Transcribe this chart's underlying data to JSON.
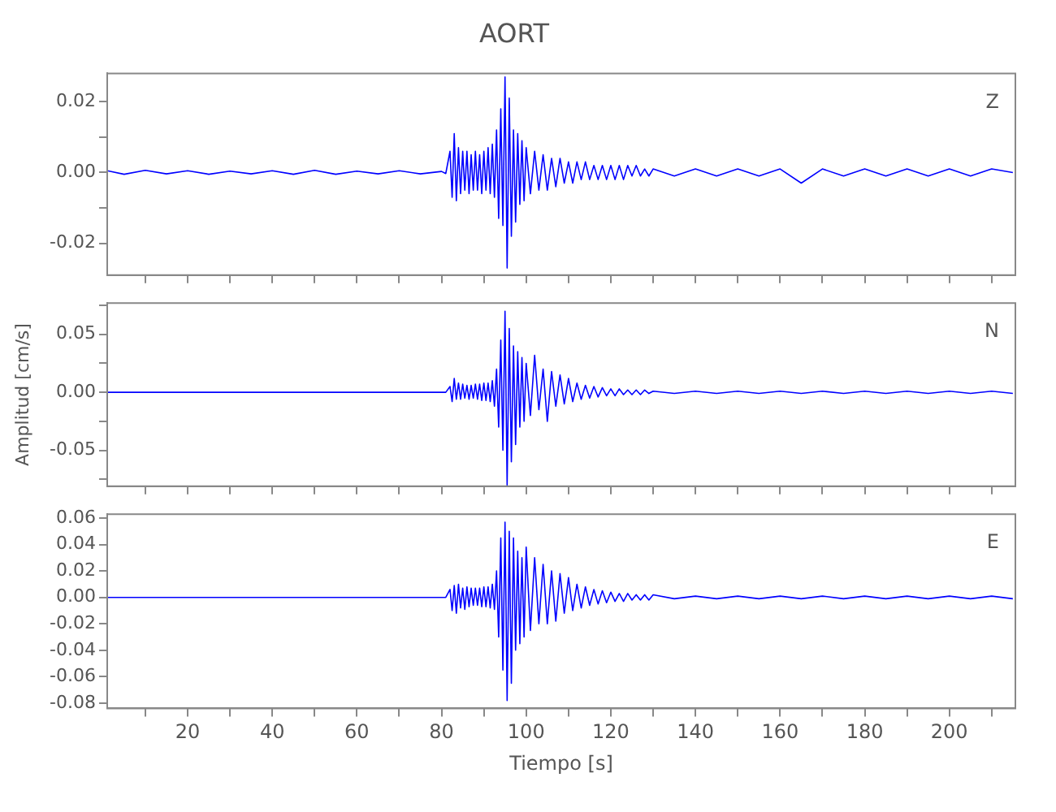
{
  "chart_data": [
    {
      "type": "line",
      "title": "AORT",
      "annotations": [
        "Z"
      ],
      "tick_labels": "y",
      "xlim": [
        1,
        215.6
      ],
      "xticks": [
        {
          "value": 10,
          "label": null
        },
        {
          "value": 20,
          "label": null
        },
        {
          "value": 30,
          "label": null
        },
        {
          "value": 40,
          "label": null
        },
        {
          "value": 50,
          "label": null
        },
        {
          "value": 60,
          "label": null
        },
        {
          "value": 70,
          "label": null
        },
        {
          "value": 80,
          "label": null
        },
        {
          "value": 90,
          "label": null
        },
        {
          "value": 100,
          "label": null
        },
        {
          "value": 110,
          "label": null
        },
        {
          "value": 120,
          "label": null
        },
        {
          "value": 130,
          "label": null
        },
        {
          "value": 140,
          "label": null
        },
        {
          "value": 150,
          "label": null
        },
        {
          "value": 160,
          "label": null
        },
        {
          "value": 170,
          "label": null
        },
        {
          "value": 180,
          "label": null
        },
        {
          "value": 190,
          "label": null
        },
        {
          "value": 200,
          "label": null
        },
        {
          "value": 210,
          "label": null
        }
      ],
      "ylim": [
        -0.029,
        0.028
      ],
      "yticks": [
        -0.02,
        {
          "value": -0.01,
          "label": null
        },
        {
          "value": 0,
          "label": "0.00"
        },
        {
          "value": 0.01,
          "label": null
        },
        0.02
      ],
      "series": [
        {
          "color": "#0000ff",
          "x": [
            1,
            5,
            10,
            15,
            20,
            25,
            30,
            35,
            40,
            45,
            50,
            55,
            60,
            65,
            70,
            75,
            80,
            81,
            82,
            82.5,
            83,
            83.5,
            84,
            84.5,
            85,
            85.5,
            86,
            86.5,
            87,
            87.5,
            88,
            88.5,
            89,
            89.5,
            90,
            90.5,
            91,
            91.5,
            92,
            92.5,
            93,
            93.5,
            94,
            94.5,
            95,
            95.5,
            96,
            96.5,
            97,
            97.5,
            98,
            98.5,
            99,
            99.5,
            100,
            101,
            102,
            103,
            104,
            105,
            106,
            107,
            108,
            109,
            110,
            111,
            112,
            113,
            114,
            115,
            116,
            117,
            118,
            119,
            120,
            121,
            122,
            123,
            124,
            125,
            126,
            127,
            128,
            129,
            130,
            135,
            140,
            145,
            150,
            155,
            160,
            165,
            170,
            175,
            180,
            185,
            190,
            195,
            200,
            205,
            210,
            215
          ],
          "values": [
            0.0005,
            -0.0005,
            0.0006,
            -0.0004,
            0.0005,
            -0.0005,
            0.0004,
            -0.0004,
            0.0005,
            -0.0005,
            0.0006,
            -0.0005,
            0.0004,
            -0.0004,
            0.0005,
            -0.0004,
            0.0003,
            -0.0003,
            0.006,
            -0.007,
            0.011,
            -0.008,
            0.007,
            -0.006,
            0.006,
            -0.005,
            0.006,
            -0.006,
            0.005,
            -0.005,
            0.006,
            -0.005,
            0.005,
            -0.006,
            0.006,
            -0.005,
            0.007,
            -0.006,
            0.008,
            -0.007,
            0.012,
            -0.013,
            0.018,
            -0.015,
            0.027,
            -0.027,
            0.021,
            -0.018,
            0.012,
            -0.014,
            0.011,
            -0.009,
            0.009,
            -0.008,
            0.007,
            -0.006,
            0.006,
            -0.005,
            0.005,
            -0.005,
            0.004,
            -0.004,
            0.004,
            -0.003,
            0.003,
            -0.003,
            0.003,
            -0.002,
            0.003,
            -0.002,
            0.002,
            -0.002,
            0.002,
            -0.002,
            0.002,
            -0.002,
            0.002,
            -0.002,
            0.002,
            -0.001,
            0.002,
            -0.001,
            0.001,
            -0.001,
            0.001,
            -0.001,
            0.001,
            -0.001,
            0.001,
            -0.001,
            0.001,
            -0.003,
            0.001,
            -0.001,
            0.001,
            -0.001,
            0.001,
            -0.001,
            0.001,
            -0.001,
            0.001,
            0
          ]
        }
      ]
    },
    {
      "type": "line",
      "ylabel": "Amplitud [cm/s]",
      "annotations": [
        "N"
      ],
      "tick_labels": "y",
      "xlim": [
        1,
        215.6
      ],
      "xticks": [
        {
          "value": 10,
          "label": null
        },
        {
          "value": 20,
          "label": null
        },
        {
          "value": 30,
          "label": null
        },
        {
          "value": 40,
          "label": null
        },
        {
          "value": 50,
          "label": null
        },
        {
          "value": 60,
          "label": null
        },
        {
          "value": 70,
          "label": null
        },
        {
          "value": 80,
          "label": null
        },
        {
          "value": 90,
          "label": null
        },
        {
          "value": 100,
          "label": null
        },
        {
          "value": 110,
          "label": null
        },
        {
          "value": 120,
          "label": null
        },
        {
          "value": 130,
          "label": null
        },
        {
          "value": 140,
          "label": null
        },
        {
          "value": 150,
          "label": null
        },
        {
          "value": 160,
          "label": null
        },
        {
          "value": 170,
          "label": null
        },
        {
          "value": 180,
          "label": null
        },
        {
          "value": 190,
          "label": null
        },
        {
          "value": 200,
          "label": null
        },
        {
          "value": 210,
          "label": null
        }
      ],
      "ylim": [
        -0.081,
        0.077
      ],
      "yticks": [
        {
          "value": -0.075,
          "label": null
        },
        -0.05,
        {
          "value": -0.025,
          "label": null
        },
        {
          "value": 0,
          "label": "0.00"
        },
        {
          "value": 0.025,
          "label": null
        },
        0.05,
        {
          "value": 0.075,
          "label": null
        }
      ],
      "series": [
        {
          "color": "#0000ff",
          "x": [
            1,
            5,
            10,
            15,
            20,
            25,
            30,
            35,
            40,
            45,
            50,
            55,
            60,
            65,
            70,
            75,
            80,
            81,
            82,
            82.5,
            83,
            83.5,
            84,
            84.5,
            85,
            85.5,
            86,
            86.5,
            87,
            87.5,
            88,
            88.5,
            89,
            89.5,
            90,
            90.5,
            91,
            91.5,
            92,
            92.5,
            93,
            93.5,
            94,
            94.5,
            95,
            95.5,
            96,
            96.5,
            97,
            97.5,
            98,
            98.5,
            99,
            99.5,
            100,
            101,
            102,
            103,
            104,
            105,
            106,
            107,
            108,
            109,
            110,
            111,
            112,
            113,
            114,
            115,
            116,
            117,
            118,
            119,
            120,
            121,
            122,
            123,
            124,
            125,
            126,
            127,
            128,
            129,
            130,
            135,
            140,
            145,
            150,
            155,
            160,
            165,
            170,
            175,
            180,
            185,
            190,
            195,
            200,
            205,
            210,
            215
          ],
          "values": [
            0,
            0,
            0,
            0,
            0,
            0,
            0,
            0,
            0,
            0,
            0,
            0,
            0,
            0,
            0,
            0,
            0,
            0,
            0.005,
            -0.008,
            0.012,
            -0.006,
            0.008,
            -0.006,
            0.007,
            -0.005,
            0.006,
            -0.006,
            0.006,
            -0.005,
            0.007,
            -0.006,
            0.007,
            -0.007,
            0.008,
            -0.007,
            0.008,
            -0.008,
            0.01,
            -0.012,
            0.02,
            -0.03,
            0.045,
            -0.05,
            0.07,
            -0.08,
            0.055,
            -0.06,
            0.04,
            -0.045,
            0.035,
            -0.03,
            0.03,
            -0.025,
            0.025,
            -0.02,
            0.032,
            -0.015,
            0.02,
            -0.025,
            0.018,
            -0.012,
            0.015,
            -0.01,
            0.012,
            -0.008,
            0.008,
            -0.006,
            0.006,
            -0.005,
            0.005,
            -0.004,
            0.004,
            -0.003,
            0.003,
            -0.003,
            0.003,
            -0.002,
            0.002,
            -0.002,
            0.002,
            -0.002,
            0.002,
            -0.001,
            0.001,
            -0.001,
            0.001,
            -0.001,
            0.001,
            -0.001,
            0.001,
            -0.001,
            0.001,
            -0.001,
            0.001,
            -0.001,
            0.001,
            -0.001,
            0.001,
            -0.001,
            0.001,
            -0.001
          ]
        }
      ]
    },
    {
      "type": "line",
      "xlabel": "Tiempo [s]",
      "annotations": [
        "E"
      ],
      "xlim": [
        1,
        215.6
      ],
      "xticks": [
        {
          "value": 10,
          "label": null
        },
        20,
        {
          "value": 30,
          "label": null
        },
        40,
        {
          "value": 50,
          "label": null
        },
        60,
        {
          "value": 70,
          "label": null
        },
        80,
        {
          "value": 90,
          "label": null
        },
        100,
        {
          "value": 110,
          "label": null
        },
        120,
        {
          "value": 130,
          "label": null
        },
        140,
        {
          "value": 150,
          "label": null
        },
        160,
        {
          "value": 170,
          "label": null
        },
        180,
        {
          "value": 190,
          "label": null
        },
        200,
        {
          "value": 210,
          "label": null
        }
      ],
      "ylim": [
        -0.084,
        0.063
      ],
      "yticks": [
        -0.08,
        -0.06,
        -0.04,
        -0.02,
        {
          "value": 0,
          "label": "0.00"
        },
        0.02,
        0.04,
        0.06
      ],
      "series": [
        {
          "color": "#0000ff",
          "x": [
            1,
            5,
            10,
            15,
            20,
            25,
            30,
            35,
            40,
            45,
            50,
            55,
            60,
            65,
            70,
            75,
            80,
            81,
            82,
            82.5,
            83,
            83.5,
            84,
            84.5,
            85,
            85.5,
            86,
            86.5,
            87,
            87.5,
            88,
            88.5,
            89,
            89.5,
            90,
            90.5,
            91,
            91.5,
            92,
            92.5,
            93,
            93.5,
            94,
            94.5,
            95,
            95.5,
            96,
            96.5,
            97,
            97.5,
            98,
            98.5,
            99,
            99.5,
            100,
            101,
            102,
            103,
            104,
            105,
            106,
            107,
            108,
            109,
            110,
            111,
            112,
            113,
            114,
            115,
            116,
            117,
            118,
            119,
            120,
            121,
            122,
            123,
            124,
            125,
            126,
            127,
            128,
            129,
            130,
            135,
            140,
            145,
            150,
            155,
            160,
            165,
            170,
            175,
            180,
            185,
            190,
            195,
            200,
            205,
            210,
            215
          ],
          "values": [
            0,
            0,
            0,
            0,
            0,
            0,
            0,
            0,
            0,
            0,
            0,
            0,
            0,
            0,
            0,
            0,
            0,
            0,
            0.006,
            -0.01,
            0.009,
            -0.012,
            0.01,
            -0.008,
            0.007,
            -0.009,
            0.008,
            -0.007,
            0.007,
            -0.006,
            0.007,
            -0.006,
            0.007,
            -0.007,
            0.008,
            -0.007,
            0.008,
            -0.008,
            0.01,
            -0.009,
            0.02,
            -0.03,
            0.045,
            -0.055,
            0.057,
            -0.078,
            0.05,
            -0.065,
            0.045,
            -0.04,
            0.035,
            -0.035,
            0.03,
            -0.03,
            0.038,
            -0.025,
            0.03,
            -0.02,
            0.025,
            -0.02,
            0.02,
            -0.018,
            0.018,
            -0.012,
            0.015,
            -0.01,
            0.01,
            -0.008,
            0.008,
            -0.006,
            0.006,
            -0.005,
            0.005,
            -0.004,
            0.004,
            -0.003,
            0.003,
            -0.003,
            0.003,
            -0.002,
            0.002,
            -0.002,
            0.002,
            -0.002,
            0.002,
            -0.001,
            0.001,
            -0.001,
            0.001,
            -0.001,
            0.001,
            -0.001,
            0.001,
            -0.001,
            0.001,
            -0.001,
            0.001,
            -0.001,
            0.001,
            -0.001,
            0.001,
            -0.001
          ]
        }
      ]
    }
  ]
}
